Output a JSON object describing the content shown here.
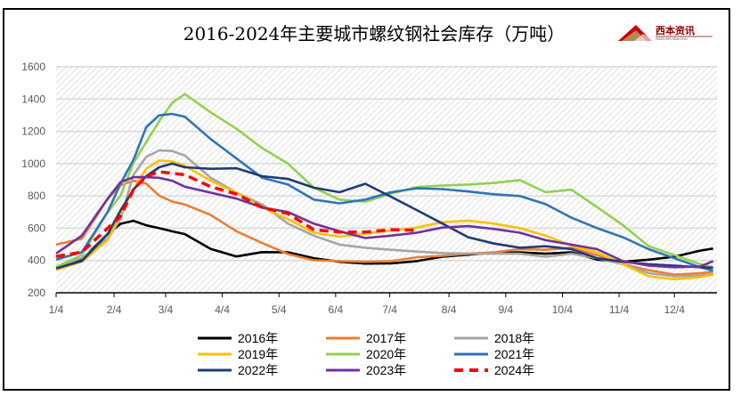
{
  "chart_data": {
    "type": "line",
    "title": "2016-2024年主要城市螺纹钢社会库存（万吨）",
    "logo": {
      "text": "西本资讯",
      "subtext": "XIBEN INFORMATION"
    },
    "xlabel": "",
    "ylabel": "",
    "x_unit": "week index from 1/4",
    "xlim": [
      0,
      51.3
    ],
    "ylim": [
      200,
      1600
    ],
    "yticks": [
      200,
      400,
      600,
      800,
      1000,
      1200,
      1400,
      1600
    ],
    "xticks": [
      {
        "label": "1/4",
        "x": 0
      },
      {
        "label": "2/4",
        "x": 4.5
      },
      {
        "label": "3/4",
        "x": 8.5
      },
      {
        "label": "4/4",
        "x": 12.9
      },
      {
        "label": "5/4",
        "x": 17.3
      },
      {
        "label": "6/4",
        "x": 21.7
      },
      {
        "label": "7/4",
        "x": 25.9
      },
      {
        "label": "8/4",
        "x": 30.5
      },
      {
        "label": "9/4",
        "x": 34.9
      },
      {
        "label": "10/4",
        "x": 39.3
      },
      {
        "label": "11/4",
        "x": 43.7
      },
      {
        "label": "12/4",
        "x": 48.0
      }
    ],
    "grid": true,
    "legend_position": "bottom",
    "x": [
      0,
      2,
      4,
      5,
      6,
      7,
      8,
      9,
      10,
      12,
      14,
      16,
      18,
      20,
      22,
      24,
      26,
      28,
      30,
      32,
      34,
      36,
      38,
      40,
      42,
      44,
      46,
      48,
      50,
      51
    ],
    "series": [
      {
        "name": "2016年",
        "color": "#000000",
        "dash": false,
        "values": [
          360,
          406,
          563,
          627,
          646,
          618,
          600,
          581,
          563,
          471,
          425,
          452,
          451,
          414,
          392,
          381,
          382,
          396,
          423,
          436,
          448,
          451,
          442,
          451,
          405,
          392,
          405,
          423,
          461,
          474
        ]
      },
      {
        "name": "2017年",
        "color": "#ed7d31",
        "dash": false,
        "values": [
          498,
          535,
          783,
          866,
          894,
          876,
          802,
          765,
          747,
          682,
          581,
          508,
          440,
          401,
          396,
          392,
          396,
          420,
          429,
          442,
          451,
          470,
          466,
          479,
          433,
          377,
          340,
          312,
          321,
          330
        ]
      },
      {
        "name": "2018年",
        "color": "#a5a5a5",
        "dash": false,
        "values": [
          360,
          416,
          535,
          655,
          931,
          1041,
          1082,
          1078,
          1050,
          912,
          820,
          747,
          628,
          554,
          498,
          479,
          466,
          455,
          446,
          442,
          442,
          442,
          423,
          442,
          414,
          377,
          321,
          302,
          306,
          321
        ]
      },
      {
        "name": "2019年",
        "color": "#ffc000",
        "dash": false,
        "values": [
          342,
          393,
          526,
          692,
          839,
          968,
          1019,
          1014,
          986,
          894,
          820,
          728,
          656,
          572,
          548,
          567,
          585,
          604,
          637,
          647,
          628,
          600,
          554,
          492,
          451,
          377,
          302,
          284,
          297,
          312
        ]
      },
      {
        "name": "2020年",
        "color": "#92d050",
        "dash": false,
        "values": [
          360,
          434,
          700,
          800,
          1004,
          1133,
          1262,
          1376,
          1431,
          1317,
          1216,
          1096,
          1000,
          851,
          777,
          764,
          814,
          855,
          864,
          870,
          880,
          898,
          823,
          838,
          730,
          619,
          489,
          433,
          377,
          358
        ]
      },
      {
        "name": "2021年",
        "color": "#2e75b6",
        "dash": false,
        "values": [
          405,
          452,
          701,
          876,
          1023,
          1225,
          1299,
          1308,
          1290,
          1152,
          1032,
          912,
          870,
          777,
          754,
          777,
          823,
          847,
          842,
          827,
          810,
          799,
          749,
          665,
          600,
          544,
          470,
          414,
          358,
          336
        ]
      },
      {
        "name": "2022年",
        "color": "#1f3a7a",
        "dash": false,
        "values": [
          351,
          397,
          563,
          710,
          839,
          922,
          977,
          1000,
          977,
          968,
          971,
          922,
          905,
          851,
          823,
          875,
          795,
          712,
          628,
          544,
          505,
          479,
          488,
          470,
          414,
          392,
          377,
          368,
          358,
          355
        ]
      },
      {
        "name": "2023年",
        "color": "#7030a0",
        "dash": false,
        "values": [
          443,
          554,
          783,
          885,
          916,
          916,
          912,
          894,
          857,
          820,
          783,
          728,
          700,
          628,
          581,
          539,
          554,
          572,
          604,
          613,
          595,
          572,
          526,
          498,
          470,
          396,
          368,
          358,
          363,
          396
        ]
      },
      {
        "name": "2024年",
        "color": "#ff0000",
        "dash": true,
        "values": [
          425,
          452,
          600,
          673,
          839,
          922,
          949,
          940,
          931,
          857,
          811,
          728,
          690,
          591,
          576,
          576,
          591,
          587,
          null,
          null,
          null,
          null,
          null,
          null,
          null,
          null,
          null,
          null,
          null,
          null
        ]
      }
    ]
  }
}
